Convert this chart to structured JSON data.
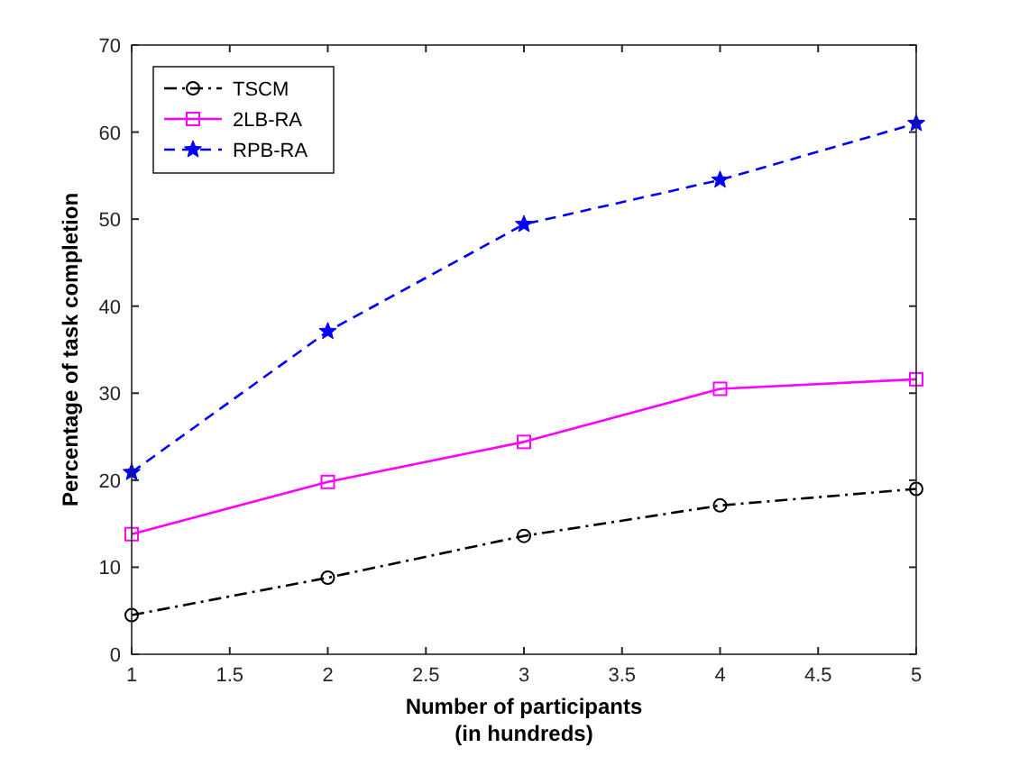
{
  "chart_data": {
    "type": "line",
    "xlabel": "Number of participants\n(in hundreds)",
    "ylabel": "Percentage of task completion",
    "x": [
      1,
      2,
      3,
      4,
      5
    ],
    "series": [
      {
        "name": "TSCM",
        "color": "#000000",
        "values": [
          4.5,
          8.8,
          13.6,
          17.1,
          19
        ],
        "marker": "circle",
        "line_style": "dashdot"
      },
      {
        "name": "2LB-RA",
        "color": "#ff00ff",
        "values": [
          13.8,
          19.8,
          24.4,
          30.5,
          31.6
        ],
        "marker": "square",
        "line_style": "solid"
      },
      {
        "name": "RPB-RA",
        "color": "#0000ff",
        "values": [
          20.9,
          37.1,
          49.4,
          54.5,
          61
        ],
        "marker": "star",
        "line_style": "dashed"
      }
    ],
    "xlim": [
      1,
      5
    ],
    "xticks": [
      1,
      1.5,
      2,
      2.5,
      3,
      3.5,
      4,
      4.5,
      5
    ],
    "ylim": [
      0,
      70
    ],
    "yticks": [
      0,
      10,
      20,
      30,
      40,
      50,
      60,
      70
    ],
    "grid": false,
    "legend": "top left"
  }
}
